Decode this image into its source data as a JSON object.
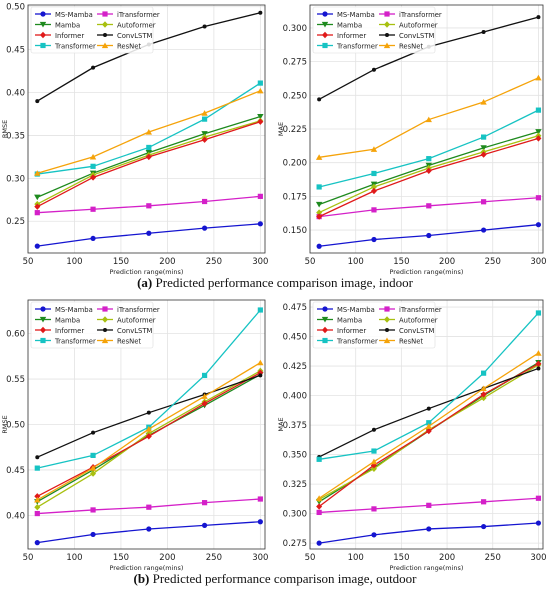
{
  "captions": {
    "a_label": "(a)",
    "a_text": "Predicted performance comparison image, indoor",
    "b_label": "(b)",
    "b_text": "Predicted performance comparison image, outdoor"
  },
  "colors": {
    "MS-Mamba": "#1515d0",
    "iTransformer": "#d420c8",
    "Mamba": "#1e8a1e",
    "Autoformer": "#a8c010",
    "Informer": "#e01a1a",
    "ConvLSTM": "#111111",
    "Transformer": "#16c3c3",
    "ResNet": "#f5a30a"
  },
  "chart_data": [
    {
      "id": "indoor-rmse",
      "type": "line",
      "xlabel": "Prediction range(mins)",
      "ylabel": "RMSE",
      "x": [
        60,
        120,
        180,
        240,
        300
      ],
      "xticks": [
        50,
        100,
        150,
        200,
        250,
        300
      ],
      "xlim": [
        50,
        305
      ],
      "yticks": [
        "0.25",
        "0.30",
        "0.35",
        "0.40",
        "0.45",
        "0.50"
      ],
      "ylim": [
        0.213,
        0.502
      ],
      "grid": true,
      "legend": "top-left, 2 columns",
      "series": [
        {
          "name": "MS-Mamba",
          "marker": "circle",
          "values": [
            0.221,
            0.23,
            0.236,
            0.242,
            0.247
          ]
        },
        {
          "name": "iTransformer",
          "marker": "square",
          "values": [
            0.26,
            0.264,
            0.268,
            0.273,
            0.279
          ]
        },
        {
          "name": "Mamba",
          "marker": "triangle-down",
          "values": [
            0.278,
            0.306,
            0.33,
            0.352,
            0.372
          ]
        },
        {
          "name": "Autoformer",
          "marker": "diamond",
          "values": [
            0.27,
            0.304,
            0.327,
            0.348,
            0.367
          ]
        },
        {
          "name": "Informer",
          "marker": "diamond",
          "values": [
            0.267,
            0.301,
            0.325,
            0.345,
            0.366
          ]
        },
        {
          "name": "ConvLSTM",
          "marker": "point",
          "values": [
            0.39,
            0.429,
            0.456,
            0.477,
            0.493
          ]
        },
        {
          "name": "Transformer",
          "marker": "square",
          "values": [
            0.305,
            0.314,
            0.336,
            0.369,
            0.411
          ]
        },
        {
          "name": "ResNet",
          "marker": "triangle-up",
          "values": [
            0.306,
            0.325,
            0.354,
            0.376,
            0.402
          ]
        }
      ]
    },
    {
      "id": "indoor-mae",
      "type": "line",
      "xlabel": "Prediction range(mins)",
      "ylabel": "MAE",
      "x": [
        60,
        120,
        180,
        240,
        300
      ],
      "xticks": [
        50,
        100,
        150,
        200,
        250,
        300
      ],
      "xlim": [
        50,
        305
      ],
      "yticks": [
        "0.150",
        "0.175",
        "0.200",
        "0.225",
        "0.250",
        "0.275",
        "0.300"
      ],
      "ylim": [
        0.133,
        0.317
      ],
      "grid": true,
      "legend": "top-left, 2 columns",
      "series": [
        {
          "name": "MS-Mamba",
          "marker": "circle",
          "values": [
            0.138,
            0.143,
            0.146,
            0.15,
            0.154
          ]
        },
        {
          "name": "iTransformer",
          "marker": "square",
          "values": [
            0.16,
            0.165,
            0.168,
            0.171,
            0.174
          ]
        },
        {
          "name": "Mamba",
          "marker": "triangle-down",
          "values": [
            0.169,
            0.184,
            0.198,
            0.211,
            0.223
          ]
        },
        {
          "name": "Autoformer",
          "marker": "diamond",
          "values": [
            0.163,
            0.182,
            0.196,
            0.208,
            0.22
          ]
        },
        {
          "name": "Informer",
          "marker": "diamond",
          "values": [
            0.16,
            0.179,
            0.194,
            0.206,
            0.218
          ]
        },
        {
          "name": "ConvLSTM",
          "marker": "point",
          "values": [
            0.247,
            0.269,
            0.286,
            0.297,
            0.308
          ]
        },
        {
          "name": "Transformer",
          "marker": "square",
          "values": [
            0.182,
            0.192,
            0.203,
            0.219,
            0.239
          ]
        },
        {
          "name": "ResNet",
          "marker": "triangle-up",
          "values": [
            0.204,
            0.21,
            0.232,
            0.245,
            0.263
          ]
        }
      ]
    },
    {
      "id": "outdoor-rmse",
      "type": "line",
      "xlabel": "Prediction range(mins)",
      "ylabel": "RMSE",
      "x": [
        60,
        120,
        180,
        240,
        300
      ],
      "xticks": [
        50,
        100,
        150,
        200,
        250,
        300
      ],
      "xlim": [
        50,
        305
      ],
      "yticks": [
        "0.40",
        "0.45",
        "0.50",
        "0.55",
        "0.60"
      ],
      "ylim": [
        0.363,
        0.637
      ],
      "grid": true,
      "legend": "top-left, 2 columns",
      "series": [
        {
          "name": "MS-Mamba",
          "marker": "circle",
          "values": [
            0.37,
            0.379,
            0.385,
            0.389,
            0.393
          ]
        },
        {
          "name": "iTransformer",
          "marker": "square",
          "values": [
            0.402,
            0.406,
            0.409,
            0.414,
            0.418
          ]
        },
        {
          "name": "Mamba",
          "marker": "triangle-down",
          "values": [
            0.415,
            0.45,
            0.488,
            0.521,
            0.555
          ]
        },
        {
          "name": "Autoformer",
          "marker": "diamond",
          "values": [
            0.409,
            0.446,
            0.49,
            0.525,
            0.559
          ]
        },
        {
          "name": "Informer",
          "marker": "diamond",
          "values": [
            0.421,
            0.453,
            0.487,
            0.523,
            0.557
          ]
        },
        {
          "name": "ConvLSTM",
          "marker": "point",
          "values": [
            0.464,
            0.491,
            0.513,
            0.533,
            0.554
          ]
        },
        {
          "name": "Transformer",
          "marker": "square",
          "values": [
            0.452,
            0.466,
            0.497,
            0.554,
            0.626
          ]
        },
        {
          "name": "ResNet",
          "marker": "triangle-up",
          "values": [
            0.417,
            0.452,
            0.495,
            0.531,
            0.568
          ]
        }
      ]
    },
    {
      "id": "outdoor-mae",
      "type": "line",
      "xlabel": "Prediction range(mins)",
      "ylabel": "MAE",
      "x": [
        60,
        120,
        180,
        240,
        300
      ],
      "xticks": [
        50,
        100,
        150,
        200,
        250,
        300
      ],
      "xlim": [
        50,
        305
      ],
      "yticks": [
        "0.275",
        "0.300",
        "0.325",
        "0.350",
        "0.375",
        "0.400",
        "0.425",
        "0.450",
        "0.475"
      ],
      "ylim": [
        0.27,
        0.481
      ],
      "grid": true,
      "legend": "top-left, 2 columns",
      "series": [
        {
          "name": "MS-Mamba",
          "marker": "circle",
          "values": [
            0.275,
            0.282,
            0.287,
            0.289,
            0.292
          ]
        },
        {
          "name": "iTransformer",
          "marker": "square",
          "values": [
            0.301,
            0.304,
            0.307,
            0.31,
            0.313
          ]
        },
        {
          "name": "Mamba",
          "marker": "triangle-down",
          "values": [
            0.31,
            0.339,
            0.37,
            0.4,
            0.428
          ]
        },
        {
          "name": "Autoformer",
          "marker": "diamond",
          "values": [
            0.312,
            0.338,
            0.371,
            0.398,
            0.426
          ]
        },
        {
          "name": "Informer",
          "marker": "diamond",
          "values": [
            0.306,
            0.341,
            0.37,
            0.401,
            0.427
          ]
        },
        {
          "name": "ConvLSTM",
          "marker": "point",
          "values": [
            0.348,
            0.371,
            0.389,
            0.406,
            0.423
          ]
        },
        {
          "name": "Transformer",
          "marker": "square",
          "values": [
            0.346,
            0.353,
            0.377,
            0.419,
            0.47
          ]
        },
        {
          "name": "ResNet",
          "marker": "triangle-up",
          "values": [
            0.313,
            0.344,
            0.374,
            0.406,
            0.436
          ]
        }
      ]
    }
  ]
}
